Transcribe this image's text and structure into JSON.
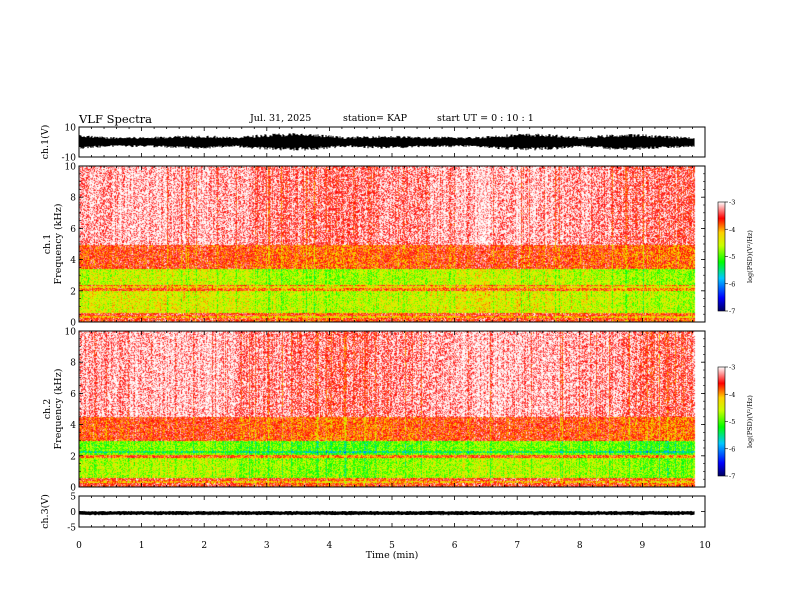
{
  "header": {
    "title": "VLF Spectra",
    "date": "Jul. 31, 2025",
    "station": "station= KAP",
    "start_ut": "start  UT =   0 : 10 : 1"
  },
  "chart_data": [
    {
      "type": "line",
      "panel": "ch1-waveform",
      "ylabel": "ch.1(V)",
      "ylim": [
        -10,
        10
      ],
      "y_tick_labels": [
        "10",
        "-10"
      ],
      "x_range_min": [
        0,
        9.83
      ],
      "approx_envelope_V": [
        -6,
        6
      ]
    },
    {
      "type": "heatmap",
      "panel": "ch1-spectrogram",
      "ylabel": "ch.1\nFrequency  (kHz)",
      "ylim": [
        0,
        10
      ],
      "y_tick_labels": [
        "0",
        "2",
        "4",
        "6",
        "8",
        "10"
      ],
      "xlim_min": [
        0,
        10
      ],
      "colorbar": {
        "label": "log(PSD)(V²/Hz)",
        "range": [
          -7,
          -3
        ],
        "tick_labels": [
          "-3",
          "-4",
          "-5",
          "-6",
          "-7"
        ]
      },
      "bands_kHz": [
        {
          "from": 0.0,
          "to": 0.6,
          "level": -3.6
        },
        {
          "from": 0.6,
          "to": 2.0,
          "level": -4.5
        },
        {
          "from": 2.0,
          "to": 2.4,
          "level": -3.8
        },
        {
          "from": 2.4,
          "to": 3.4,
          "level": -4.6
        },
        {
          "from": 3.4,
          "to": 5.0,
          "level": -3.7
        },
        {
          "from": 5.0,
          "to": 10.0,
          "level": -3.2
        }
      ]
    },
    {
      "type": "heatmap",
      "panel": "ch2-spectrogram",
      "ylabel": "ch.2\nFrequency  (kHz)",
      "ylim": [
        0,
        10
      ],
      "y_tick_labels": [
        "0",
        "2",
        "4",
        "6",
        "8",
        "10"
      ],
      "xlim_min": [
        0,
        10
      ],
      "colorbar": {
        "label": "log(PSD)(V²/Hz)",
        "range": [
          -7,
          -3
        ],
        "tick_labels": [
          "-3",
          "-4",
          "-5",
          "-6",
          "-7"
        ]
      },
      "bands_kHz": [
        {
          "from": 0.0,
          "to": 0.6,
          "level": -3.6
        },
        {
          "from": 0.6,
          "to": 1.9,
          "level": -4.7
        },
        {
          "from": 1.9,
          "to": 2.1,
          "level": -3.8
        },
        {
          "from": 2.1,
          "to": 3.0,
          "level": -4.9
        },
        {
          "from": 3.0,
          "to": 4.5,
          "level": -3.7
        },
        {
          "from": 4.5,
          "to": 10.0,
          "level": -3.2
        }
      ]
    },
    {
      "type": "line",
      "panel": "ch3-waveform",
      "ylabel": "ch.3(V)",
      "ylim": [
        -5,
        5
      ],
      "y_tick_labels": [
        "5",
        "0",
        "-5"
      ],
      "x_range_min": [
        0,
        9.83
      ],
      "approx_envelope_V": [
        -1.2,
        0.2
      ]
    }
  ],
  "x_axis": {
    "label": "Time  (min)",
    "range": [
      0,
      10
    ],
    "tick_labels": [
      "0",
      "1",
      "2",
      "3",
      "4",
      "5",
      "6",
      "7",
      "8",
      "9",
      "10"
    ]
  }
}
